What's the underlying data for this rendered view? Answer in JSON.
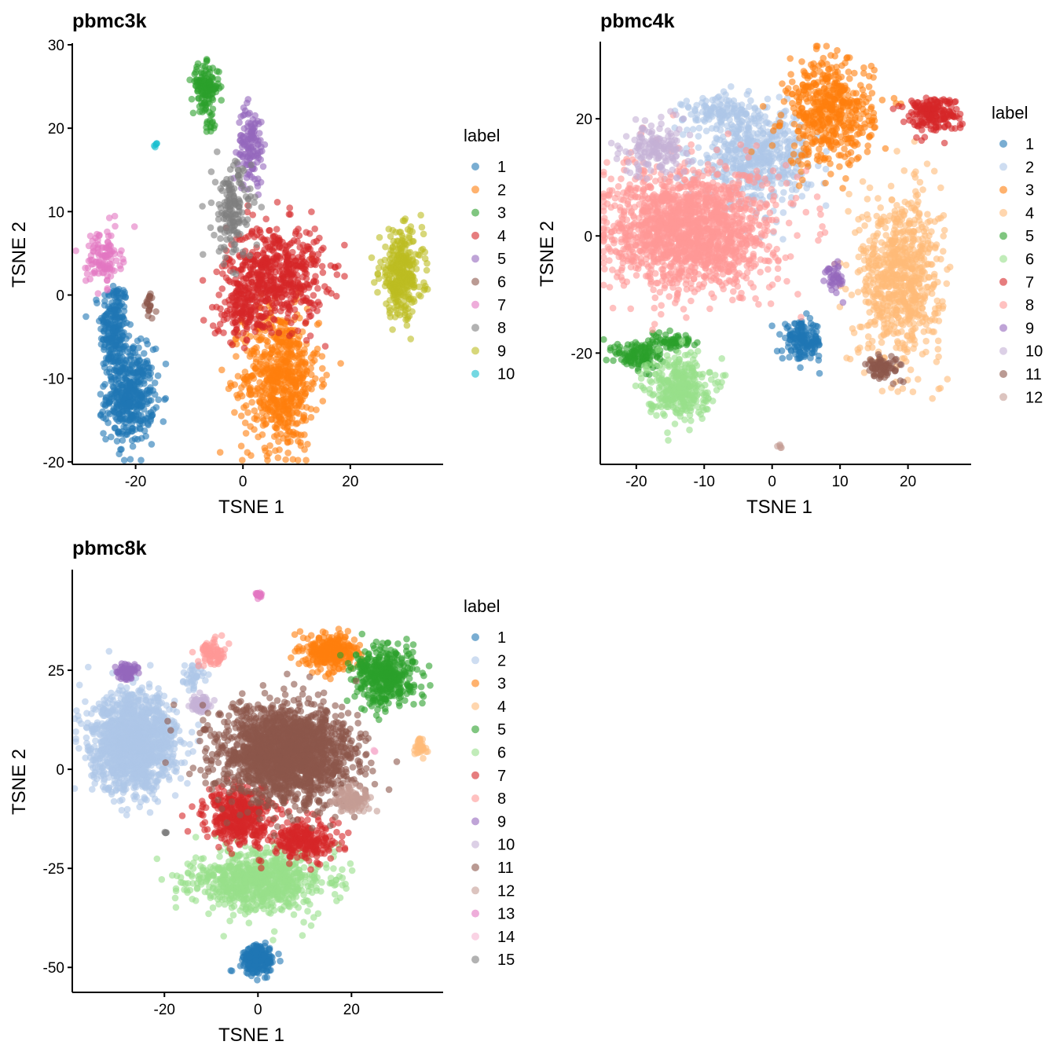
{
  "chart_data": [
    {
      "type": "scatter",
      "title": "pbmc3k",
      "xlabel": "TSNE 1",
      "ylabel": "TSNE 2",
      "xlim": [
        -31.8,
        37.3
      ],
      "ylim": [
        -20.3,
        30
      ],
      "xticks": [
        -20,
        0,
        20
      ],
      "yticks": [
        -20,
        -10,
        0,
        10,
        20,
        30
      ],
      "grid": false,
      "legend": {
        "title": "label",
        "placement": "right"
      },
      "point_opacity": 0.6,
      "clusters": [
        {
          "label": "1",
          "color": "#1f77b4",
          "blobs": [
            [
              -24,
              -4,
              1.3,
              3,
              220
            ],
            [
              -21,
              -12,
              2.2,
              2.8,
              420
            ]
          ]
        },
        {
          "label": "2",
          "color": "#ff7f0e",
          "blobs": [
            [
              7,
              -10,
              3.5,
              4.2,
              650
            ]
          ]
        },
        {
          "label": "3",
          "color": "#2ca02c",
          "blobs": [
            [
              -7,
              25,
              1.3,
              1.3,
              130
            ],
            [
              -6,
              20.5,
              0.5,
              1,
              15
            ]
          ]
        },
        {
          "label": "4",
          "color": "#d62728",
          "blobs": [
            [
              6,
              2.5,
              4.5,
              3,
              550
            ],
            [
              0,
              -2,
              3,
              1.5,
              120
            ]
          ]
        },
        {
          "label": "5",
          "color": "#9467bd",
          "blobs": [
            [
              1.5,
              18,
              1.2,
              2.3,
              130
            ]
          ]
        },
        {
          "label": "6",
          "color": "#8c564b",
          "blobs": [
            [
              -17.5,
              -1.3,
              0.5,
              0.8,
              20
            ]
          ]
        },
        {
          "label": "7",
          "color": "#e377c2",
          "blobs": [
            [
              -26,
              4.5,
              1.6,
              1.7,
              110
            ]
          ]
        },
        {
          "label": "8",
          "color": "#7f7f7f",
          "blobs": [
            [
              -2,
              10,
              1.8,
              3,
              160
            ]
          ]
        },
        {
          "label": "9",
          "color": "#bcbd22",
          "blobs": [
            [
              29.5,
              2.5,
              2,
              2.5,
              320
            ]
          ]
        },
        {
          "label": "10",
          "color": "#17becf",
          "blobs": [
            [
              -16.3,
              18,
              0.2,
              0.2,
              5
            ]
          ]
        }
      ]
    },
    {
      "type": "scatter",
      "title": "pbmc4k",
      "xlabel": "TSNE 1",
      "ylabel": "TSNE 2",
      "xlim": [
        -25.3,
        29.3
      ],
      "ylim": [
        -39,
        32.9
      ],
      "xticks": [
        -20,
        -10,
        0,
        10,
        20
      ],
      "yticks": [
        -20,
        0,
        20
      ],
      "grid": false,
      "legend": {
        "title": "label",
        "placement": "right"
      },
      "point_opacity": 0.6,
      "clusters": [
        {
          "label": "1",
          "color": "#1f77b4",
          "blobs": [
            [
              4.5,
              -18,
              1.5,
              1.6,
              150
            ]
          ]
        },
        {
          "label": "2",
          "color": "#aec7e8",
          "blobs": [
            [
              -2.5,
              13.5,
              4,
              4,
              500
            ],
            [
              -7,
              21,
              3,
              1.5,
              120
            ]
          ]
        },
        {
          "label": "3",
          "color": "#ff7f0e",
          "blobs": [
            [
              8.5,
              21,
              3.2,
              4.5,
              500
            ]
          ]
        },
        {
          "label": "4",
          "color": "#ffbb78",
          "blobs": [
            [
              18.8,
              -7,
              3,
              7,
              750
            ]
          ]
        },
        {
          "label": "5",
          "color": "#2ca02c",
          "blobs": [
            [
              -19.5,
              -20.5,
              1.8,
              1.3,
              120
            ],
            [
              -15,
              -18,
              1.8,
              0.8,
              60
            ]
          ]
        },
        {
          "label": "6",
          "color": "#98df8a",
          "blobs": [
            [
              -13.7,
              -25.7,
              2.3,
              2.6,
              330
            ]
          ]
        },
        {
          "label": "7",
          "color": "#d62728",
          "blobs": [
            [
              23.4,
              21,
              2,
              1.5,
              180
            ]
          ]
        },
        {
          "label": "8",
          "color": "#ff9896",
          "blobs": [
            [
              -12,
              1,
              6,
              5.2,
              1600
            ]
          ]
        },
        {
          "label": "9",
          "color": "#9467bd",
          "blobs": [
            [
              9.3,
              -7,
              0.6,
              1.4,
              40
            ]
          ]
        },
        {
          "label": "10",
          "color": "#c5b0d5",
          "blobs": [
            [
              -17,
              15,
              2.5,
              2.3,
              160
            ]
          ]
        },
        {
          "label": "11",
          "color": "#8c564b",
          "blobs": [
            [
              16.4,
              -22.4,
              1.2,
              1,
              80
            ]
          ]
        },
        {
          "label": "12",
          "color": "#c49c94",
          "blobs": [
            [
              1.4,
              -36,
              0.3,
              0.3,
              5
            ]
          ]
        }
      ]
    },
    {
      "type": "scatter",
      "title": "pbmc8k",
      "xlabel": "TSNE 1",
      "ylabel": "TSNE 2",
      "xlim": [
        -39.7,
        39.6
      ],
      "ylim": [
        -56.3,
        50
      ],
      "xticks": [
        -20,
        0,
        20
      ],
      "yticks": [
        -50,
        -25,
        0,
        25
      ],
      "grid": false,
      "legend": {
        "title": "label",
        "placement": "right"
      },
      "point_opacity": 0.6,
      "clusters": [
        {
          "label": "1",
          "color": "#1f77b4",
          "blobs": [
            [
              0,
              -48,
              1.8,
              1.8,
              200
            ]
          ]
        },
        {
          "label": "2",
          "color": "#aec7e8",
          "blobs": [
            [
              -26.6,
              6.7,
              4.5,
              6,
              1400
            ],
            [
              -14,
              23.6,
              1.2,
              1.5,
              40
            ]
          ]
        },
        {
          "label": "3",
          "color": "#ff7f0e",
          "blobs": [
            [
              15.5,
              29.6,
              2.7,
              2.2,
              300
            ]
          ]
        },
        {
          "label": "4",
          "color": "#ffbb78",
          "blobs": [
            [
              34.8,
              5.8,
              0.6,
              1.3,
              40
            ]
          ]
        },
        {
          "label": "5",
          "color": "#2ca02c",
          "blobs": [
            [
              27.2,
              23.6,
              3.2,
              3.6,
              420
            ]
          ]
        },
        {
          "label": "6",
          "color": "#98df8a",
          "blobs": [
            [
              0.3,
              -28,
              7,
              3.8,
              800
            ]
          ]
        },
        {
          "label": "7",
          "color": "#d62728",
          "blobs": [
            [
              -3.9,
              -12,
              3.5,
              3.5,
              400
            ],
            [
              9.6,
              -18,
              3.5,
              2.5,
              250
            ]
          ]
        },
        {
          "label": "8",
          "color": "#ff9896",
          "blobs": [
            [
              -10,
              29.5,
              1.4,
              1.6,
              80
            ]
          ]
        },
        {
          "label": "9",
          "color": "#9467bd",
          "blobs": [
            [
              -27.9,
              24.6,
              1,
              1,
              80
            ]
          ]
        },
        {
          "label": "10",
          "color": "#c5b0d5",
          "blobs": [
            [
              -12.3,
              16.3,
              1.3,
              1.1,
              60
            ]
          ]
        },
        {
          "label": "11",
          "color": "#8c564b",
          "blobs": [
            [
              6.2,
              3.8,
              7,
              6,
              2000
            ]
          ]
        },
        {
          "label": "12",
          "color": "#c49c94",
          "blobs": [
            [
              20.5,
              -8,
              1.8,
              1.8,
              100
            ]
          ]
        },
        {
          "label": "13",
          "color": "#e377c2",
          "blobs": [
            [
              0.3,
              44,
              0.4,
              0.4,
              20
            ]
          ]
        },
        {
          "label": "14",
          "color": "#f7b6d2",
          "blobs": [
            [
              24.9,
              4.6,
              0.15,
              0.15,
              5
            ]
          ]
        },
        {
          "label": "15",
          "color": "#7f7f7f",
          "blobs": [
            [
              -19.8,
              -15.9,
              0.15,
              0.15,
              5
            ]
          ]
        }
      ]
    }
  ]
}
